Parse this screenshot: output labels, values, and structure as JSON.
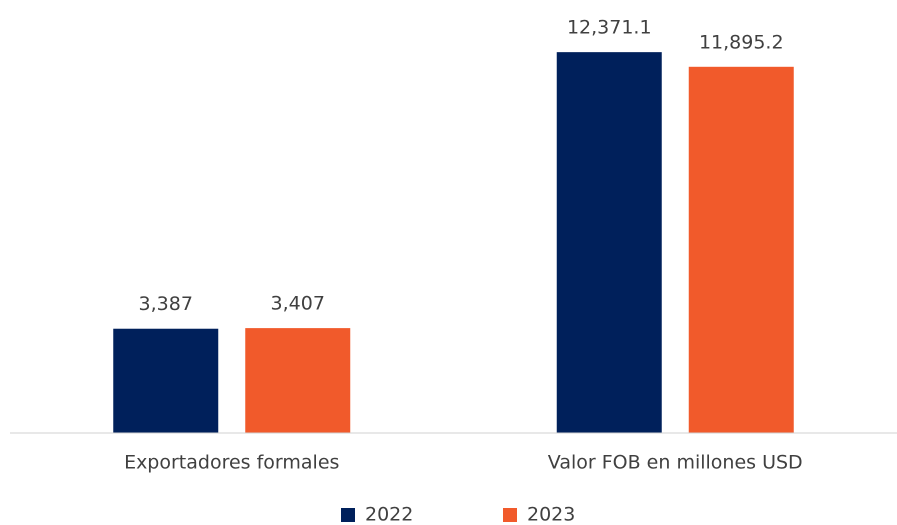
{
  "chart_data": {
    "type": "bar",
    "categories": [
      "Exportadores formales",
      "Valor FOB en millones USD"
    ],
    "series": [
      {
        "name": "2022",
        "color": "#00205b",
        "values": [
          3387,
          12371.1
        ],
        "value_labels": [
          "3,387",
          "12,371.1"
        ]
      },
      {
        "name": "2023",
        "color": "#f15a2b",
        "values": [
          3407,
          11895.2
        ],
        "value_labels": [
          "3,407",
          "11,895.2"
        ]
      }
    ],
    "ylim": [
      0,
      14000
    ],
    "legend": "bottom"
  }
}
